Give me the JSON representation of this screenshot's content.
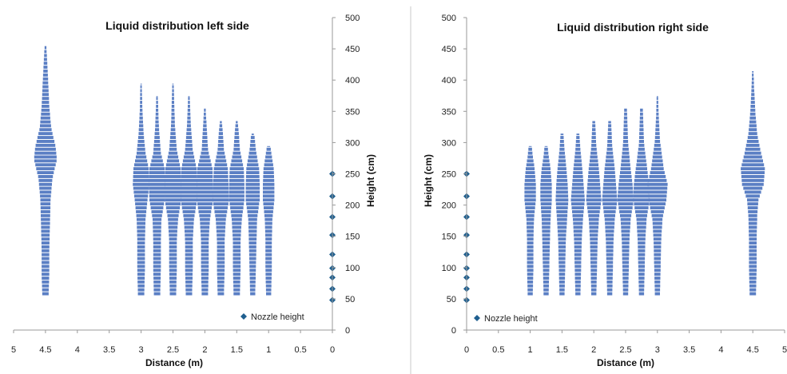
{
  "colors": {
    "bars": "#5b7fc4",
    "nozzle": "#1f5f8f",
    "axis": "#999999",
    "divider": "#c8c8c8"
  },
  "chart_data": [
    {
      "type": "bar",
      "title": "Liquid distribution left side",
      "xlabel": "Distance (m)",
      "ylabel": "Height (cm)",
      "xlim": [
        5,
        0
      ],
      "ylim": [
        0,
        500
      ],
      "x_reversed": true,
      "y_axis_side": "right",
      "x_ticks": [
        "5",
        "4.5",
        "4",
        "3.5",
        "3",
        "2.5",
        "2",
        "1.5",
        "1",
        "0.5",
        "0"
      ],
      "y_ticks": [
        "0",
        "50",
        "100",
        "150",
        "200",
        "250",
        "300",
        "350",
        "400",
        "450",
        "500"
      ],
      "legend": {
        "label": "Nozzle height",
        "position": "bottom-right"
      },
      "nozzle_heights": [
        48,
        66,
        84,
        99,
        121,
        152,
        181,
        214,
        250
      ],
      "columns": [
        {
          "x": 4.5,
          "top": 455,
          "profile": [
            [
              55,
              0.05
            ],
            [
              85,
              0.06
            ],
            [
              125,
              0.06
            ],
            [
              165,
              0.07
            ],
            [
              205,
              0.08
            ],
            [
              240,
              0.11
            ],
            [
              270,
              0.18
            ],
            [
              290,
              0.16
            ],
            [
              320,
              0.09
            ],
            [
              355,
              0.06
            ],
            [
              400,
              0.04
            ],
            [
              440,
              0.02
            ],
            [
              455,
              0.01
            ]
          ]
        },
        {
          "x": 3.0,
          "top": 395,
          "profile": [
            [
              55,
              0.05
            ],
            [
              95,
              0.06
            ],
            [
              140,
              0.06
            ],
            [
              175,
              0.07
            ],
            [
              205,
              0.1
            ],
            [
              230,
              0.13
            ],
            [
              255,
              0.12
            ],
            [
              280,
              0.07
            ],
            [
              310,
              0.04
            ],
            [
              350,
              0.02
            ],
            [
              395,
              0.01
            ]
          ]
        },
        {
          "x": 2.75,
          "top": 375,
          "profile": [
            [
              55,
              0.05
            ],
            [
              95,
              0.06
            ],
            [
              140,
              0.06
            ],
            [
              175,
              0.07
            ],
            [
              205,
              0.12
            ],
            [
              230,
              0.13
            ],
            [
              255,
              0.12
            ],
            [
              280,
              0.06
            ],
            [
              320,
              0.03
            ],
            [
              375,
              0.01
            ]
          ]
        },
        {
          "x": 2.5,
          "top": 395,
          "profile": [
            [
              55,
              0.05
            ],
            [
              95,
              0.06
            ],
            [
              140,
              0.06
            ],
            [
              175,
              0.08
            ],
            [
              205,
              0.13
            ],
            [
              230,
              0.13
            ],
            [
              255,
              0.12
            ],
            [
              285,
              0.06
            ],
            [
              325,
              0.03
            ],
            [
              395,
              0.01
            ]
          ]
        },
        {
          "x": 2.25,
          "top": 375,
          "profile": [
            [
              55,
              0.05
            ],
            [
              95,
              0.06
            ],
            [
              140,
              0.06
            ],
            [
              175,
              0.08
            ],
            [
              205,
              0.13
            ],
            [
              230,
              0.13
            ],
            [
              255,
              0.12
            ],
            [
              285,
              0.06
            ],
            [
              325,
              0.03
            ],
            [
              375,
              0.01
            ]
          ]
        },
        {
          "x": 2.0,
          "top": 355,
          "profile": [
            [
              55,
              0.05
            ],
            [
              95,
              0.06
            ],
            [
              140,
              0.06
            ],
            [
              175,
              0.08
            ],
            [
              205,
              0.13
            ],
            [
              230,
              0.13
            ],
            [
              255,
              0.12
            ],
            [
              285,
              0.05
            ],
            [
              320,
              0.03
            ],
            [
              355,
              0.01
            ]
          ]
        },
        {
          "x": 1.75,
          "top": 335,
          "profile": [
            [
              55,
              0.05
            ],
            [
              95,
              0.06
            ],
            [
              140,
              0.06
            ],
            [
              175,
              0.08
            ],
            [
              205,
              0.13
            ],
            [
              230,
              0.12
            ],
            [
              255,
              0.11
            ],
            [
              285,
              0.05
            ],
            [
              315,
              0.03
            ],
            [
              335,
              0.01
            ]
          ]
        },
        {
          "x": 1.5,
          "top": 335,
          "profile": [
            [
              55,
              0.05
            ],
            [
              95,
              0.06
            ],
            [
              140,
              0.06
            ],
            [
              175,
              0.08
            ],
            [
              205,
              0.12
            ],
            [
              230,
              0.12
            ],
            [
              255,
              0.11
            ],
            [
              285,
              0.05
            ],
            [
              315,
              0.03
            ],
            [
              335,
              0.01
            ]
          ]
        },
        {
          "x": 1.25,
          "top": 315,
          "profile": [
            [
              55,
              0.04
            ],
            [
              95,
              0.05
            ],
            [
              140,
              0.06
            ],
            [
              175,
              0.07
            ],
            [
              205,
              0.11
            ],
            [
              230,
              0.11
            ],
            [
              255,
              0.1
            ],
            [
              285,
              0.05
            ],
            [
              305,
              0.03
            ],
            [
              315,
              0.01
            ]
          ]
        },
        {
          "x": 1.0,
          "top": 295,
          "profile": [
            [
              55,
              0.04
            ],
            [
              95,
              0.05
            ],
            [
              140,
              0.05
            ],
            [
              175,
              0.06
            ],
            [
              205,
              0.09
            ],
            [
              230,
              0.09
            ],
            [
              255,
              0.08
            ],
            [
              275,
              0.05
            ],
            [
              295,
              0.02
            ]
          ]
        }
      ]
    },
    {
      "type": "bar",
      "title": "Liquid distribution right side",
      "xlabel": "Distance (m)",
      "ylabel": "Height (cm)",
      "xlim": [
        0,
        5
      ],
      "ylim": [
        0,
        500
      ],
      "x_reversed": false,
      "y_axis_side": "left",
      "x_ticks": [
        "0",
        "0.5",
        "1",
        "1.5",
        "2",
        "2.5",
        "3",
        "3.5",
        "4",
        "4.5",
        "5"
      ],
      "y_ticks": [
        "0",
        "50",
        "100",
        "150",
        "200",
        "250",
        "300",
        "350",
        "400",
        "450",
        "500"
      ],
      "legend": {
        "label": "Nozzle height",
        "position": "bottom-left"
      },
      "nozzle_heights": [
        48,
        66,
        84,
        99,
        121,
        152,
        181,
        214,
        250
      ],
      "columns": [
        {
          "x": 1.0,
          "top": 295,
          "profile": [
            [
              55,
              0.04
            ],
            [
              95,
              0.05
            ],
            [
              140,
              0.05
            ],
            [
              175,
              0.06
            ],
            [
              205,
              0.09
            ],
            [
              230,
              0.09
            ],
            [
              255,
              0.07
            ],
            [
              275,
              0.04
            ],
            [
              295,
              0.02
            ]
          ]
        },
        {
          "x": 1.25,
          "top": 295,
          "profile": [
            [
              55,
              0.04
            ],
            [
              95,
              0.05
            ],
            [
              140,
              0.06
            ],
            [
              175,
              0.07
            ],
            [
              205,
              0.09
            ],
            [
              230,
              0.09
            ],
            [
              255,
              0.07
            ],
            [
              275,
              0.04
            ],
            [
              295,
              0.02
            ]
          ]
        },
        {
          "x": 1.5,
          "top": 315,
          "profile": [
            [
              55,
              0.04
            ],
            [
              95,
              0.05
            ],
            [
              140,
              0.06
            ],
            [
              175,
              0.08
            ],
            [
              205,
              0.1
            ],
            [
              230,
              0.09
            ],
            [
              255,
              0.07
            ],
            [
              285,
              0.04
            ],
            [
              315,
              0.02
            ]
          ]
        },
        {
          "x": 1.75,
          "top": 315,
          "profile": [
            [
              55,
              0.04
            ],
            [
              95,
              0.05
            ],
            [
              140,
              0.06
            ],
            [
              175,
              0.08
            ],
            [
              205,
              0.11
            ],
            [
              230,
              0.09
            ],
            [
              255,
              0.07
            ],
            [
              285,
              0.04
            ],
            [
              315,
              0.02
            ]
          ]
        },
        {
          "x": 2.0,
          "top": 335,
          "profile": [
            [
              55,
              0.04
            ],
            [
              95,
              0.05
            ],
            [
              140,
              0.06
            ],
            [
              175,
              0.08
            ],
            [
              205,
              0.12
            ],
            [
              230,
              0.1
            ],
            [
              255,
              0.08
            ],
            [
              290,
              0.04
            ],
            [
              335,
              0.02
            ]
          ]
        },
        {
          "x": 2.25,
          "top": 335,
          "profile": [
            [
              55,
              0.04
            ],
            [
              95,
              0.05
            ],
            [
              140,
              0.06
            ],
            [
              175,
              0.08
            ],
            [
              205,
              0.12
            ],
            [
              230,
              0.1
            ],
            [
              255,
              0.08
            ],
            [
              290,
              0.04
            ],
            [
              335,
              0.02
            ]
          ]
        },
        {
          "x": 2.5,
          "top": 355,
          "profile": [
            [
              55,
              0.04
            ],
            [
              95,
              0.05
            ],
            [
              140,
              0.06
            ],
            [
              175,
              0.08
            ],
            [
              205,
              0.13
            ],
            [
              230,
              0.11
            ],
            [
              255,
              0.08
            ],
            [
              295,
              0.04
            ],
            [
              355,
              0.02
            ]
          ]
        },
        {
          "x": 2.75,
          "top": 355,
          "profile": [
            [
              55,
              0.04
            ],
            [
              95,
              0.05
            ],
            [
              140,
              0.06
            ],
            [
              175,
              0.08
            ],
            [
              205,
              0.13
            ],
            [
              230,
              0.12
            ],
            [
              255,
              0.09
            ],
            [
              295,
              0.04
            ],
            [
              355,
              0.02
            ]
          ]
        },
        {
          "x": 3.0,
          "top": 375,
          "profile": [
            [
              55,
              0.04
            ],
            [
              95,
              0.05
            ],
            [
              140,
              0.06
            ],
            [
              175,
              0.08
            ],
            [
              205,
              0.14
            ],
            [
              230,
              0.16
            ],
            [
              255,
              0.1
            ],
            [
              300,
              0.04
            ],
            [
              340,
              0.02
            ],
            [
              375,
              0.01
            ]
          ]
        },
        {
          "x": 4.5,
          "top": 415,
          "profile": [
            [
              55,
              0.05
            ],
            [
              95,
              0.06
            ],
            [
              140,
              0.06
            ],
            [
              180,
              0.07
            ],
            [
              205,
              0.09
            ],
            [
              230,
              0.17
            ],
            [
              255,
              0.19
            ],
            [
              280,
              0.13
            ],
            [
              310,
              0.07
            ],
            [
              345,
              0.04
            ],
            [
              385,
              0.02
            ],
            [
              415,
              0.01
            ]
          ]
        }
      ]
    }
  ]
}
